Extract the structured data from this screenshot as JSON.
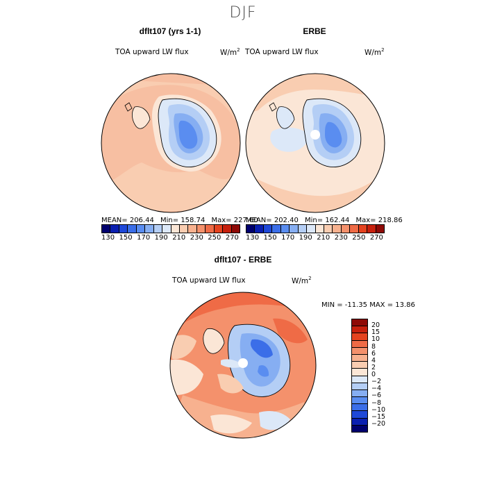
{
  "main_title": "DJF",
  "panel_left": {
    "title": "dflt107 (yrs 1-1)",
    "variable": "TOA upward LW flux",
    "unit_base": "W/m",
    "unit_exp": "2",
    "mean_label": "MEAN= 206.44",
    "min_label": "Min= 158.74",
    "max_label": "Max= 227.60"
  },
  "panel_right": {
    "title": "ERBE",
    "variable": "TOA upward LW flux",
    "unit_base": "W/m",
    "unit_exp": "2",
    "mean_label": "MEAN= 202.40",
    "min_label": "Min= 162.44",
    "max_label": "Max= 218.86"
  },
  "panel_diff": {
    "title": "dflt107 - ERBE",
    "variable": "TOA upward LW flux",
    "unit_base": "W/m",
    "unit_exp": "2",
    "minmax_label": "MIN = -11.35 MAX =  13.86"
  },
  "abs_colorbar": {
    "ticks": [
      "130",
      "150",
      "170",
      "190",
      "210",
      "230",
      "250",
      "270"
    ],
    "colors": [
      "#00006e",
      "#0a1fb0",
      "#1e48d8",
      "#3b6ee8",
      "#5a8df0",
      "#86aef2",
      "#b4cef5",
      "#dce8f8",
      "#fbe6d6",
      "#f9cdb1",
      "#f7b18f",
      "#f4916c",
      "#ef6b46",
      "#e5431f",
      "#c7200d",
      "#8e0a06"
    ]
  },
  "diff_colorbar": {
    "ticks": [
      "20",
      "15",
      "10",
      "8",
      "6",
      "4",
      "2",
      "0",
      "−2",
      "−4",
      "−6",
      "−8",
      "−10",
      "−15",
      "−20"
    ],
    "colors": [
      "#8e0a06",
      "#c7200d",
      "#e5431f",
      "#ef6b46",
      "#f4916c",
      "#f7b18f",
      "#f9cdb1",
      "#fbe6d6",
      "#dce8f8",
      "#b4cef5",
      "#86aef2",
      "#5a8df0",
      "#3b6ee8",
      "#1e48d8",
      "#0a1fb0",
      "#00006e"
    ]
  }
}
